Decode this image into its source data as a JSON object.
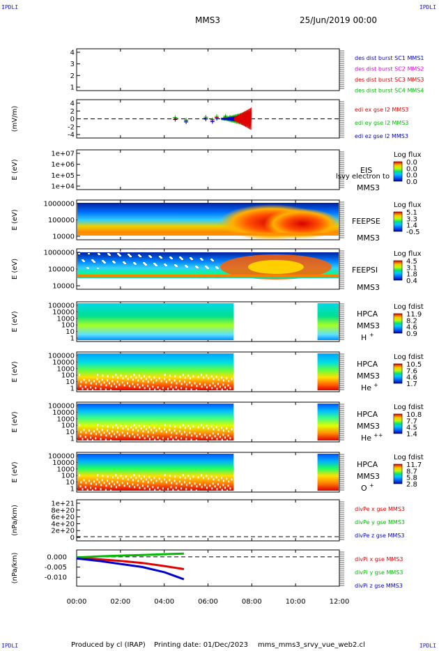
{
  "corner_labels": {
    "top_left": "IPDLI",
    "top_right": "IPDLI",
    "bottom_left": "IPDLI",
    "bottom_right": "IPDLI"
  },
  "header": {
    "mission": "MMS3",
    "date": "25/Jun/2019 00:00"
  },
  "footer": {
    "produced": "Produced by cl (IRAP)",
    "printing": "Printing date: 01/Dec/2023",
    "file": "mms_mms3_srvy_vue_web2.cl"
  },
  "colors": {
    "blue": "#0000cc",
    "magenta": "#dd00dd",
    "red": "#e00000",
    "green": "#00bb00"
  },
  "chart_data": [
    {
      "type": "line",
      "panel": "des-dist-burst",
      "ylim": [
        0.5,
        4.5
      ],
      "yticks": [
        "4",
        "3",
        "2",
        "1"
      ],
      "legend": [
        {
          "name": "des dist burst SC1 MMS1",
          "color": "#0000cc"
        },
        {
          "name": "des dist burst SC2 MMS2",
          "color": "#dd00dd"
        },
        {
          "name": "des dist burst SC3 MMS3",
          "color": "#e00000"
        },
        {
          "name": "des dist burst SC4 MMS4",
          "color": "#00bb00"
        }
      ]
    },
    {
      "type": "line",
      "panel": "edi-e-gse",
      "ylabel": "(mV/m)",
      "ylim": [
        -4.5,
        4.5
      ],
      "yticks": [
        "4",
        "2",
        "0",
        "-2",
        "-4"
      ],
      "legend": [
        {
          "name": "edi ex gse l2 MMS3",
          "color": "#e00000"
        },
        {
          "name": "edi ey gse l2 MMS3",
          "color": "#00bb00"
        },
        {
          "name": "edi ez gse l2 MMS3",
          "color": "#0000cc"
        }
      ]
    },
    {
      "type": "heatmap",
      "panel": "eis",
      "ylabel": "E (eV)",
      "yticks": [
        "1e+07",
        "1e+06",
        "1e+05",
        "1e+04"
      ],
      "instrument": "EIS",
      "sub": "MMS3",
      "extra": "lsvy electron to",
      "colorbar": {
        "title": "Log flux",
        "ticks": [
          "0.0",
          "0.0",
          "0.0",
          "0.0"
        ]
      }
    },
    {
      "type": "heatmap",
      "panel": "feepse",
      "ylabel": "E (eV)",
      "yticks": [
        "1000000",
        "100000",
        "10000"
      ],
      "instrument": "FEEPSE",
      "sub": "MMS3",
      "colorbar": {
        "title": "Log flux",
        "ticks": [
          "5.1",
          "3.3",
          "1.4",
          "-0.5"
        ]
      }
    },
    {
      "type": "heatmap",
      "panel": "feepsi",
      "ylabel": "E (eV)",
      "yticks": [
        "1000000",
        "100000",
        "10000"
      ],
      "instrument": "FEEPSI",
      "sub": "MMS3",
      "colorbar": {
        "title": "Log flux",
        "ticks": [
          "4.5",
          "3.1",
          "1.8",
          "0.4"
        ]
      }
    },
    {
      "type": "heatmap",
      "panel": "hpca-h",
      "ylabel": "E (eV)",
      "yticks": [
        "100000",
        "10000",
        "1000",
        "100",
        "10",
        "1"
      ],
      "instrument": "HPCA",
      "sub": "MMS3",
      "species": "H",
      "charge": "+",
      "colorbar": {
        "title": "Log fdist",
        "ticks": [
          "11.9",
          "8.2",
          "4.6",
          "0.9"
        ]
      }
    },
    {
      "type": "heatmap",
      "panel": "hpca-he",
      "ylabel": "E (eV)",
      "yticks": [
        "100000",
        "10000",
        "1000",
        "100",
        "10",
        "1"
      ],
      "instrument": "HPCA",
      "sub": "MMS3",
      "species": "He",
      "charge": "+",
      "colorbar": {
        "title": "Log fdist",
        "ticks": [
          "10.5",
          "7.6",
          "4.6",
          "1.7"
        ]
      }
    },
    {
      "type": "heatmap",
      "panel": "hpca-hepp",
      "ylabel": "E (eV)",
      "yticks": [
        "100000",
        "10000",
        "1000",
        "100",
        "10",
        "1"
      ],
      "instrument": "HPCA",
      "sub": "MMS3",
      "species": "He",
      "charge": "++",
      "colorbar": {
        "title": "Log fdist",
        "ticks": [
          "10.8",
          "7.7",
          "4.5",
          "1.4"
        ]
      }
    },
    {
      "type": "heatmap",
      "panel": "hpca-o",
      "ylabel": "E (eV)",
      "yticks": [
        "100000",
        "10000",
        "1000",
        "100",
        "10",
        "1"
      ],
      "instrument": "HPCA",
      "sub": "MMS3",
      "species": "O",
      "charge": "+",
      "colorbar": {
        "title": "Log fdist",
        "ticks": [
          "11.7",
          "8.7",
          "5.8",
          "2.8"
        ]
      }
    },
    {
      "type": "line",
      "panel": "divpe",
      "ylabel": "(nPa/km)",
      "yticks": [
        "1e+21",
        "8e+20",
        "6e+20",
        "4e+20",
        "2e+20",
        "0"
      ],
      "legend": [
        {
          "name": "divPe x gse MMS3",
          "color": "#e00000"
        },
        {
          "name": "divPe y gse MMS3",
          "color": "#00bb00"
        },
        {
          "name": "divPe z gse MMS3",
          "color": "#0000cc"
        }
      ]
    },
    {
      "type": "line",
      "panel": "divpi",
      "ylabel": "(nPa/km)",
      "ylim": [
        -0.013,
        0.002
      ],
      "yticks": [
        "0.000",
        "-0.005",
        "-0.010"
      ],
      "legend": [
        {
          "name": "divPi x gse MMS3",
          "color": "#e00000"
        },
        {
          "name": "divPi y gse MMS3",
          "color": "#00bb00"
        },
        {
          "name": "divPi z gse MMS3",
          "color": "#0000cc"
        }
      ],
      "series": [
        {
          "name": "divPi x gse MMS3",
          "x": [
            0,
            1,
            2,
            3,
            4,
            4.9
          ],
          "y": [
            -0.0005,
            -0.0012,
            -0.002,
            -0.003,
            -0.0045,
            -0.006
          ]
        },
        {
          "name": "divPi y gse MMS3",
          "x": [
            0,
            1,
            2,
            3,
            4,
            4.9
          ],
          "y": [
            -0.0003,
            0.0002,
            0.0006,
            0.0009,
            0.0013,
            0.0016
          ]
        },
        {
          "name": "divPi z gse MMS3",
          "x": [
            0,
            1,
            2,
            3,
            4,
            4.9
          ],
          "y": [
            -0.0008,
            -0.002,
            -0.0035,
            -0.005,
            -0.0075,
            -0.011
          ]
        }
      ]
    }
  ],
  "xaxis": {
    "ticks": [
      "00:00",
      "02:00",
      "04:00",
      "06:00",
      "08:00",
      "10:00",
      "12:00"
    ],
    "xlim": [
      0,
      12
    ]
  }
}
